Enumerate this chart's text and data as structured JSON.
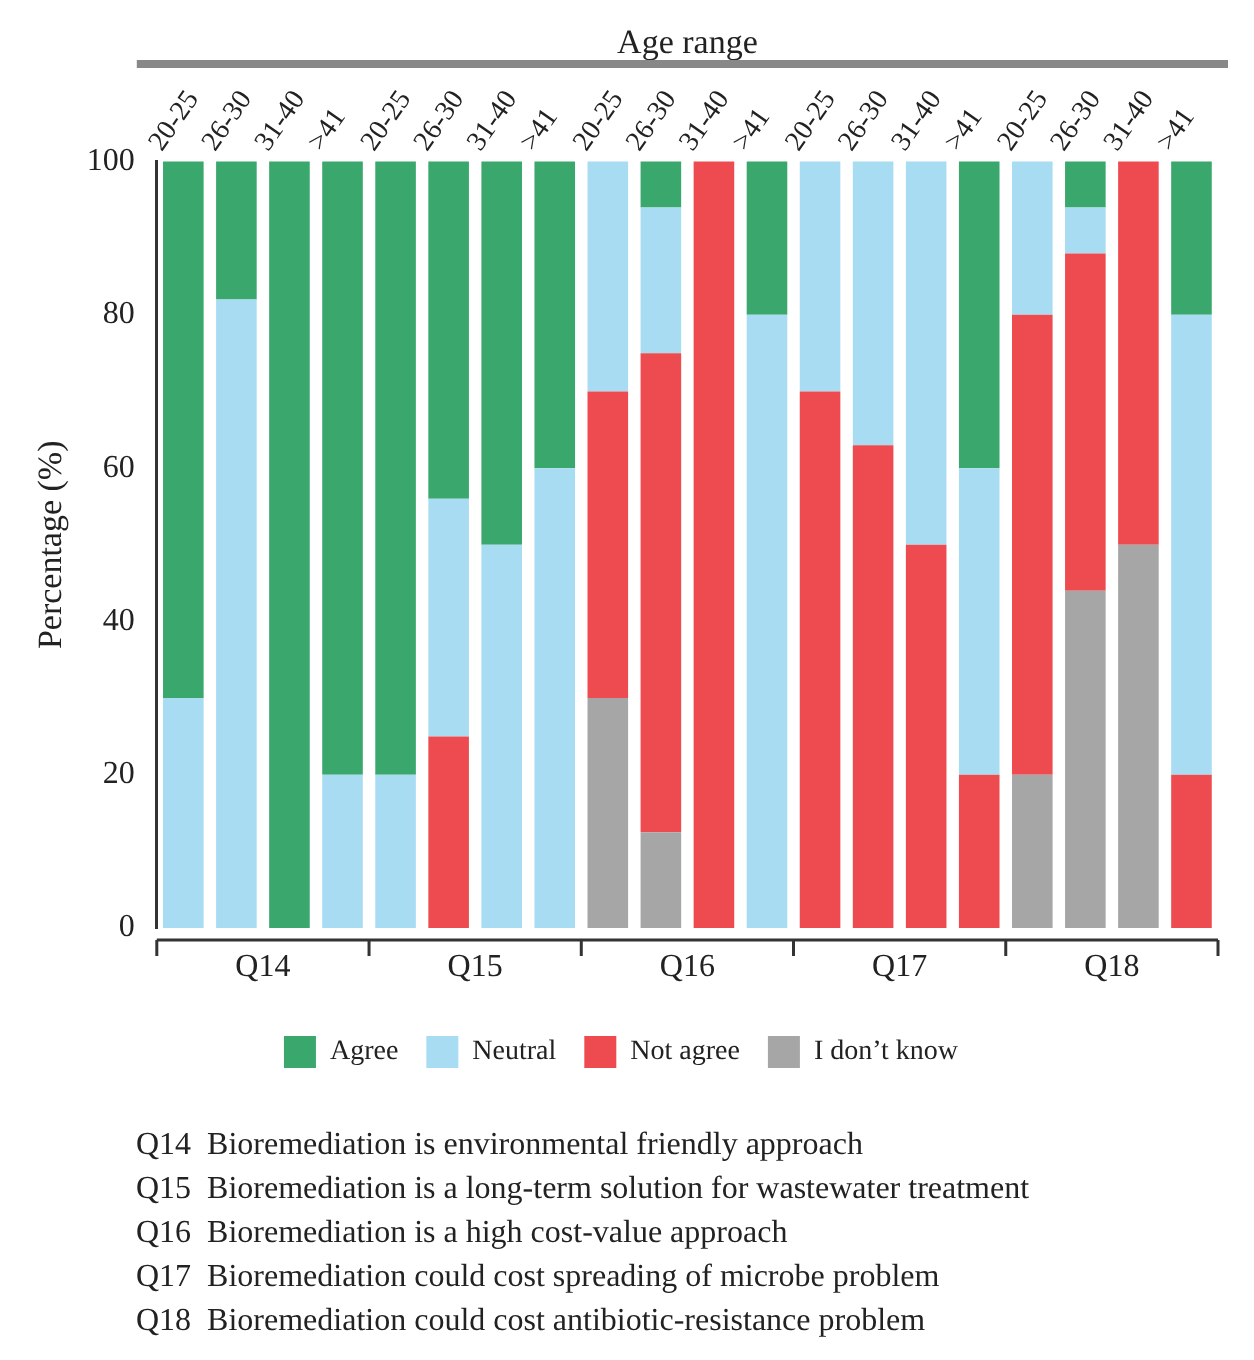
{
  "chart_data": {
    "type": "bar",
    "stacked": true,
    "xlabel": "Age range",
    "ylabel": "Percentage (%)",
    "categories": [
      "20-25",
      "26-30",
      "31-40",
      ">41",
      "20-25",
      "26-30",
      "31-40",
      ">41",
      "20-25",
      "26-30",
      "31-40",
      ">41",
      "20-25",
      "26-30",
      "31-40",
      ">41",
      "20-25",
      "26-30",
      "31-40",
      ">41"
    ],
    "series": [
      {
        "name": "I don’t know",
        "color": "#a6a6a6",
        "values": [
          0,
          0,
          0,
          0,
          0,
          0,
          0,
          0,
          30,
          12.5,
          0,
          0,
          0,
          0,
          0,
          0,
          20,
          44,
          50,
          0
        ]
      },
      {
        "name": "Not agree",
        "color": "#ee4b50",
        "values": [
          0,
          0,
          0,
          0,
          0,
          25,
          0,
          0,
          40,
          62.5,
          100,
          0,
          70,
          63,
          50,
          20,
          60,
          44,
          50,
          20
        ]
      },
      {
        "name": "Neutral",
        "color": "#a8dcf2",
        "values": [
          30,
          82,
          0,
          20,
          20,
          31,
          50,
          60,
          30,
          19,
          0,
          80,
          30,
          37,
          50,
          40,
          20,
          6,
          0,
          60
        ]
      },
      {
        "name": "Agree",
        "color": "#3aa76d",
        "values": [
          70,
          18,
          100,
          80,
          80,
          44,
          50,
          40,
          0,
          6,
          0,
          20,
          0,
          0,
          0,
          40,
          0,
          6,
          0,
          20
        ]
      }
    ],
    "ylim": [
      0,
      100
    ],
    "yticks": [
      0,
      20,
      40,
      60,
      80,
      100
    ],
    "grid": false,
    "legend": "bottom",
    "annotations": [
      "Q14",
      "Q15",
      "Q16",
      "Q17",
      "Q18",
      "Q14  Bioremediation is environmental friendly approach",
      "Q15  Bioremediation is a long-term solution for wastewater treatment",
      "Q16  Bioremediation is a high cost-value approach",
      "Q17  Bioremediation could cost spreading of microbe problem",
      "Q18  Bioremediation could cost antibiotic-resistance problem"
    ]
  }
}
